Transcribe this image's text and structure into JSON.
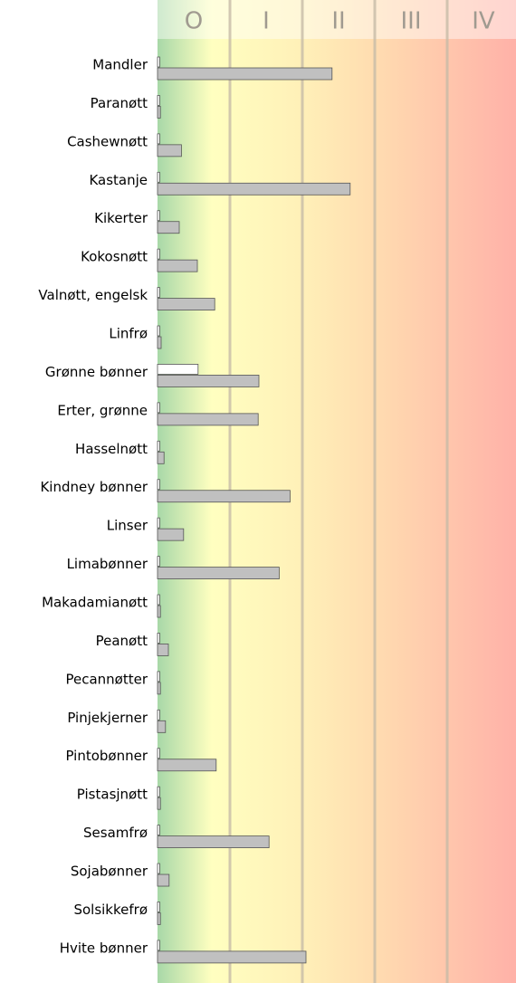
{
  "chart_data": {
    "type": "bar",
    "orientation": "horizontal",
    "bands": [
      "O",
      "I",
      "II",
      "III",
      "IV"
    ],
    "xlim": [
      0,
      5
    ],
    "xticks": [
      1,
      2,
      3,
      4
    ],
    "grid": true,
    "categories": [
      "Mandler",
      "Paranøtt",
      "Cashewnøtt",
      "Kastanje",
      "Kikerter",
      "Kokosnøtt",
      "Valnøtt, engelsk",
      "Linfrø",
      "Grønne bønner",
      "Erter, grønne",
      "Hasselnøtt",
      "Kindney bønner",
      "Linser",
      "Limabønner",
      "Makadamianøtt",
      "Peanøtt",
      "Pecannøtter",
      "Pinjekjerner",
      "Pintobønner",
      "Pistasjnøtt",
      "Sesamfrø",
      "Sojabønner",
      "Solsikkefrø",
      "Hvite bønner"
    ],
    "series": [
      {
        "color": "#ffffff",
        "values": [
          0.03,
          0.03,
          0.03,
          0.03,
          0.03,
          0.03,
          0.03,
          0.03,
          0.56,
          0.03,
          0.03,
          0.03,
          0.03,
          0.03,
          0.03,
          0.03,
          0.03,
          0.03,
          0.03,
          0.03,
          0.03,
          0.03,
          0.03,
          0.03
        ]
      },
      {
        "color": "#c0c0c0",
        "values": [
          2.41,
          0.04,
          0.33,
          2.66,
          0.3,
          0.55,
          0.79,
          0.05,
          1.4,
          1.39,
          0.09,
          1.83,
          0.36,
          1.68,
          0.04,
          0.15,
          0.04,
          0.11,
          0.81,
          0.04,
          1.54,
          0.16,
          0.04,
          2.05
        ]
      }
    ]
  }
}
